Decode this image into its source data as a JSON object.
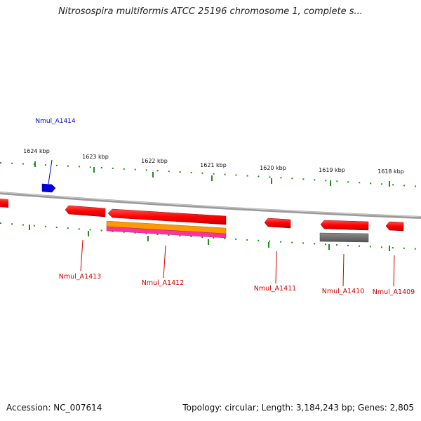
{
  "title": "Nitrosospira multiformis ATCC 25196 chromosome 1, complete s...",
  "kbp_labels": [
    "1624 kbp",
    "1623 kbp",
    "1622 kbp",
    "1621 kbp",
    "1620 kbp",
    "1619 kbp",
    "1618 kbp"
  ],
  "genes": {
    "g1414": "Nmul_A1414",
    "g1413": "Nmul_A1413",
    "g1412": "Nmul_A1412",
    "g1411": "Nmul_A1411",
    "g1410": "Nmul_A1410",
    "g1409": "Nmul_A1409"
  },
  "footer": {
    "accession": "Accession: NC_007614",
    "summary": "Topology: circular; Length: 3,184,243 bp; Genes: 2,805"
  },
  "colors": {
    "gene": "#ff0000",
    "gene_blue": "#0000e0",
    "gene_label_red": "#cc0000",
    "gene_label_blue": "#0000cc",
    "tick": "#1e8c1e",
    "backbone": "#909090",
    "orange": "#ff9900",
    "magenta": "#ff3399",
    "gray_feature": "#6e6e6e"
  }
}
